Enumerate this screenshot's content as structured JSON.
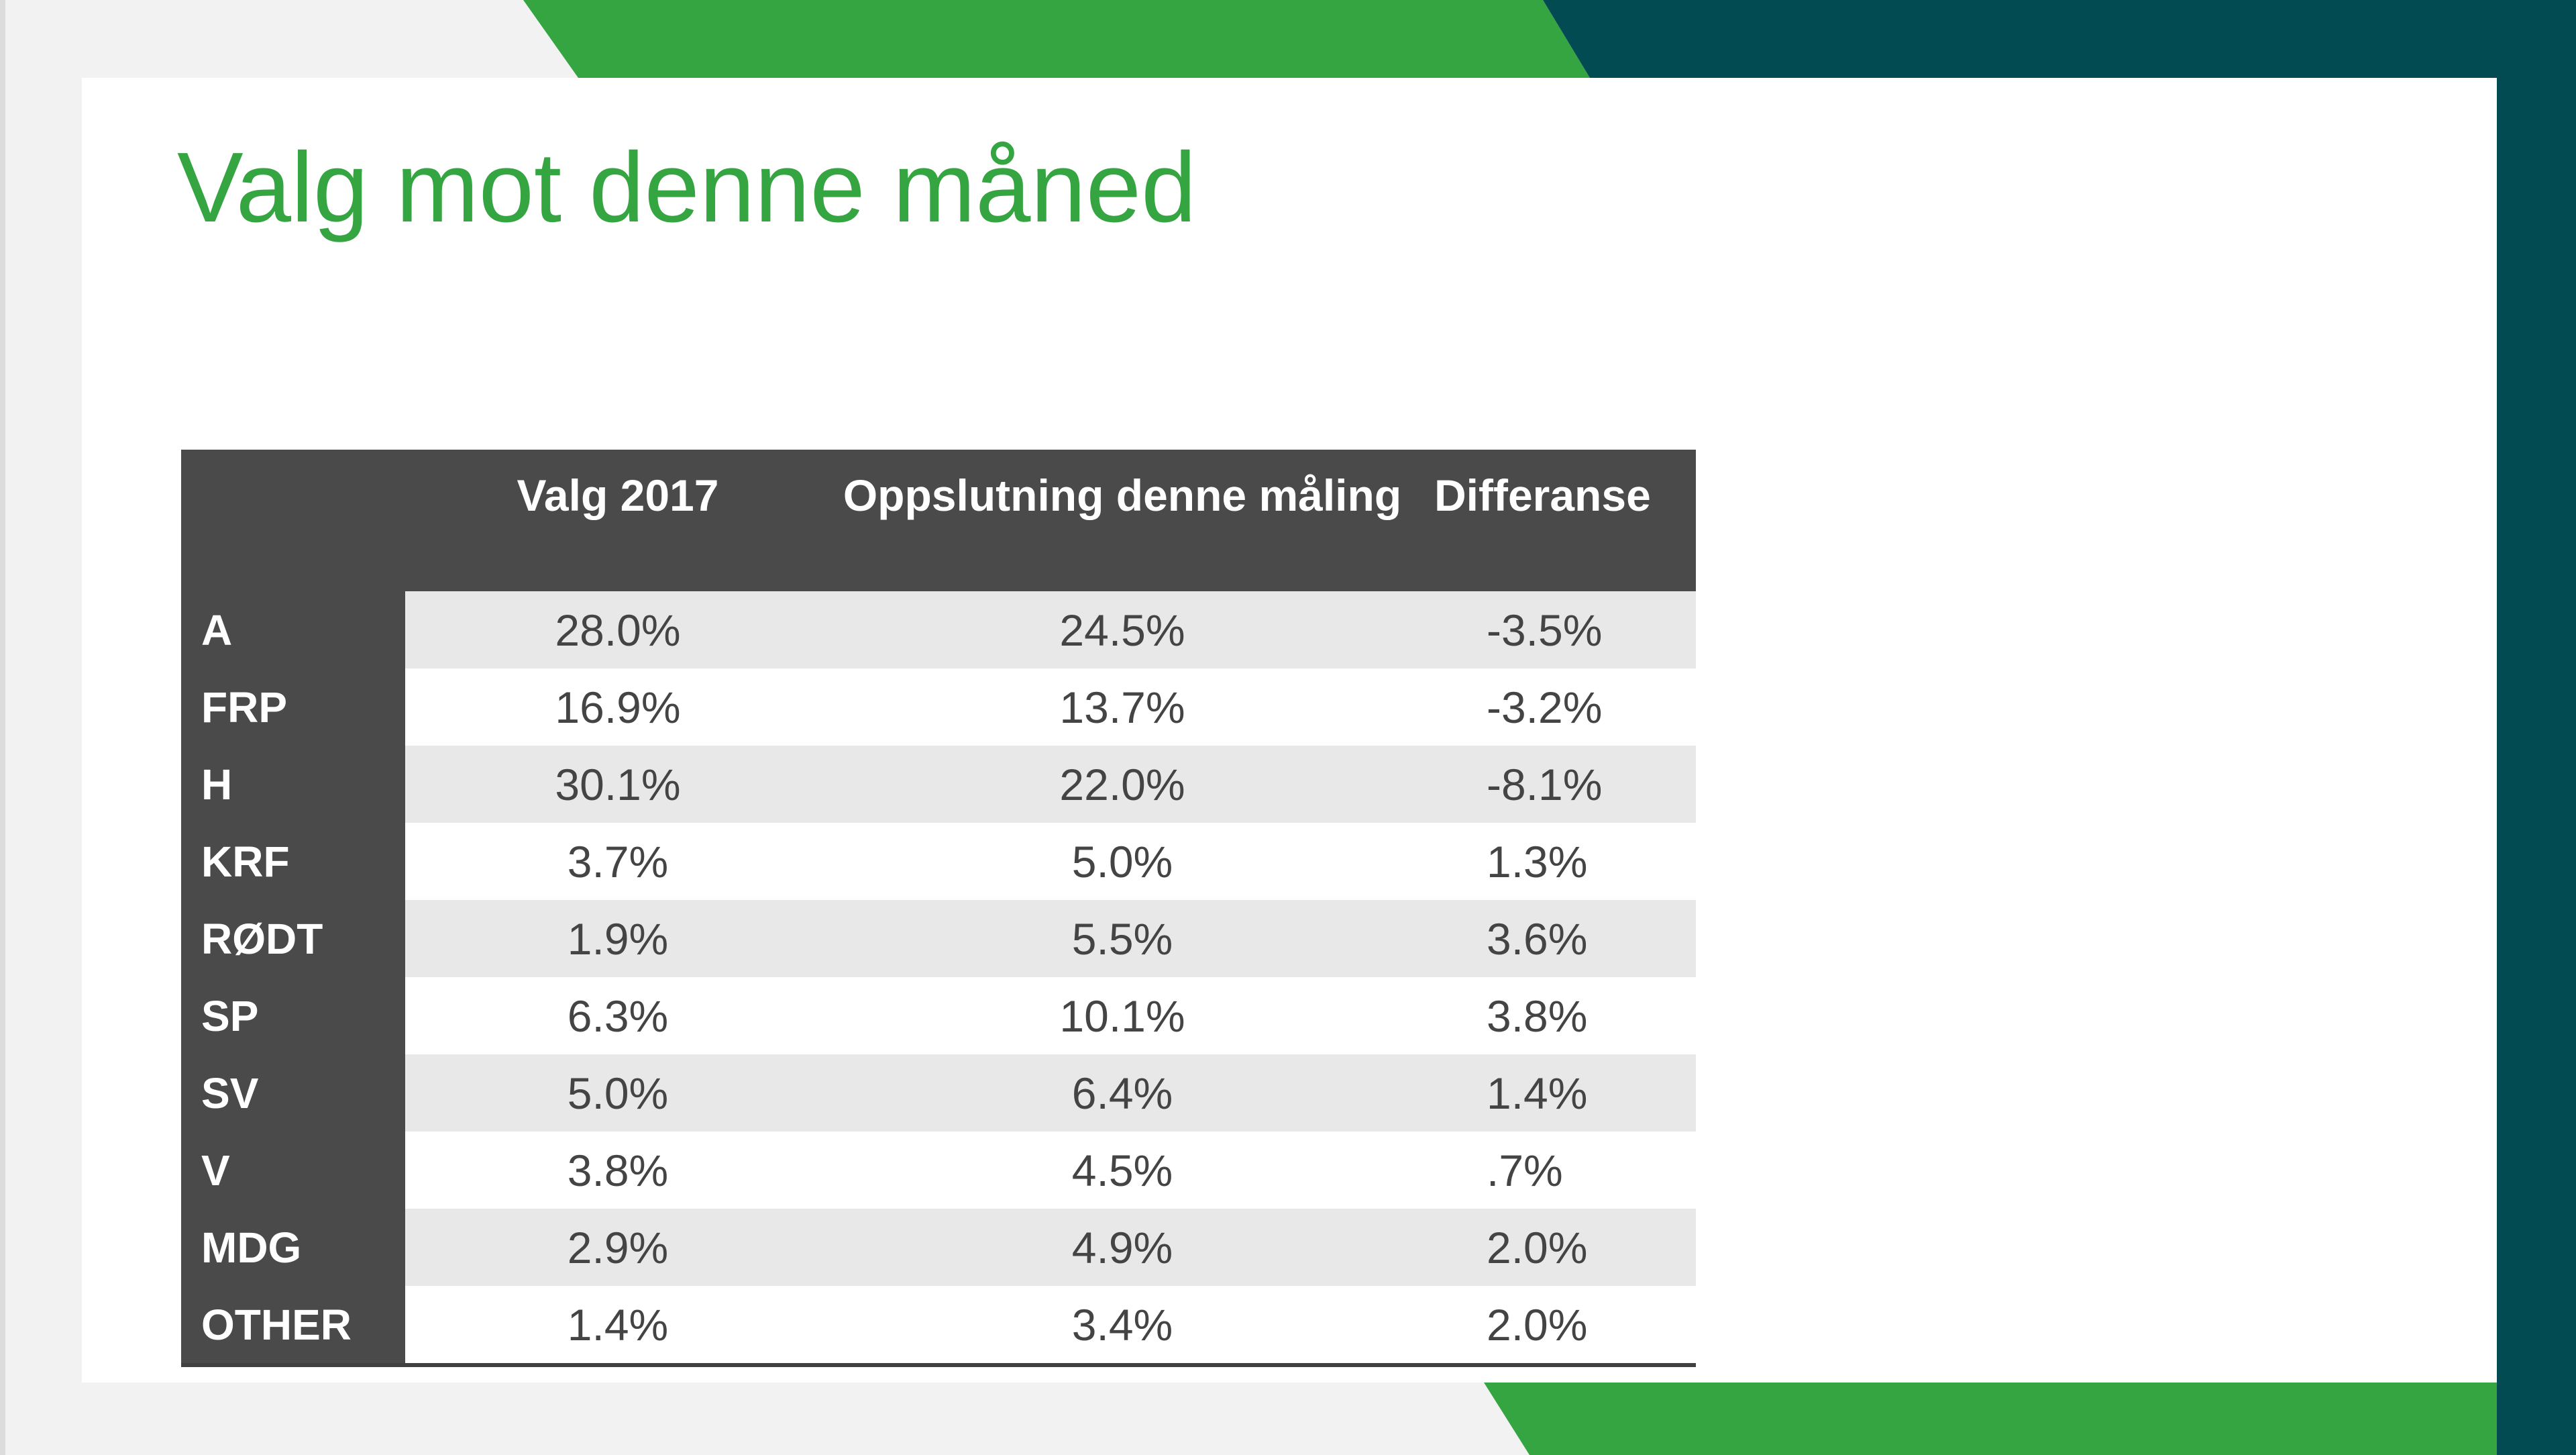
{
  "colors": {
    "green": "#35a541",
    "dark_teal": "#024b52",
    "header_bg": "#4a4a4a",
    "stripe": "#e8e8e8",
    "title": "#35a541"
  },
  "slide": {
    "title": "Valg mot denne måned"
  },
  "table": {
    "headers": [
      "",
      "Valg 2017",
      "Oppslutning denne måling",
      "Differanse"
    ],
    "rows": [
      {
        "party": "A",
        "valg_2017": "28.0%",
        "oppslutning": "24.5%",
        "differanse": "-3.5%"
      },
      {
        "party": "FRP",
        "valg_2017": "16.9%",
        "oppslutning": "13.7%",
        "differanse": "-3.2%"
      },
      {
        "party": "H",
        "valg_2017": "30.1%",
        "oppslutning": "22.0%",
        "differanse": "-8.1%"
      },
      {
        "party": "KRF",
        "valg_2017": "3.7%",
        "oppslutning": "5.0%",
        "differanse": "1.3%"
      },
      {
        "party": "RØDT",
        "valg_2017": "1.9%",
        "oppslutning": "5.5%",
        "differanse": "3.6%"
      },
      {
        "party": "SP",
        "valg_2017": "6.3%",
        "oppslutning": "10.1%",
        "differanse": "3.8%"
      },
      {
        "party": "SV",
        "valg_2017": "5.0%",
        "oppslutning": "6.4%",
        "differanse": "1.4%"
      },
      {
        "party": "V",
        "valg_2017": "3.8%",
        "oppslutning": "4.5%",
        "differanse": ".7%"
      },
      {
        "party": "MDG",
        "valg_2017": "2.9%",
        "oppslutning": "4.9%",
        "differanse": "2.0%"
      },
      {
        "party": "OTHER",
        "valg_2017": "1.4%",
        "oppslutning": "3.4%",
        "differanse": "2.0%"
      }
    ]
  }
}
